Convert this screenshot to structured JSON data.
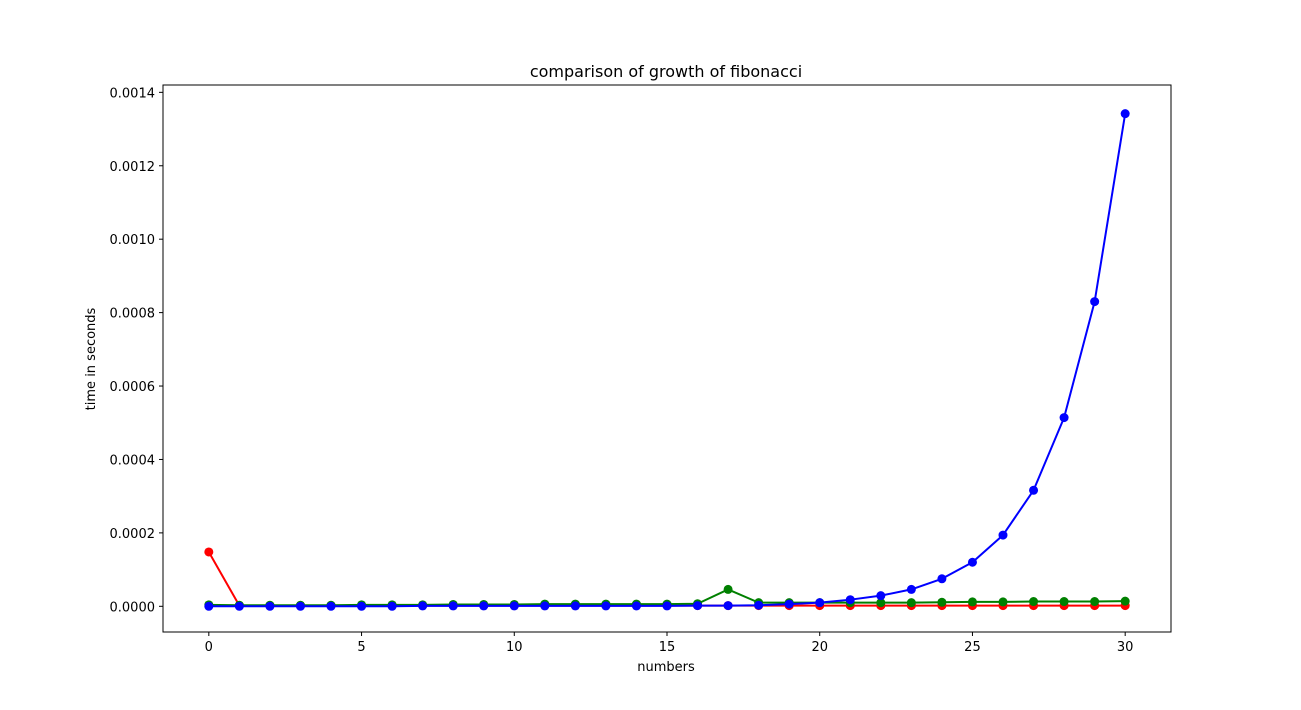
{
  "chart_data": {
    "type": "line",
    "title": "comparison of growth of fibonacci",
    "xlabel": "numbers",
    "ylabel": "time in seconds",
    "xlim": [
      -1.5,
      31.5
    ],
    "ylim": [
      -7e-05,
      0.00142
    ],
    "xticks": [
      0,
      5,
      10,
      15,
      20,
      25,
      30
    ],
    "xtick_labels": [
      "0",
      "5",
      "10",
      "15",
      "20",
      "25",
      "30"
    ],
    "yticks": [
      0.0,
      0.0002,
      0.0004,
      0.0006,
      0.0008,
      0.001,
      0.0012,
      0.0014
    ],
    "ytick_labels": [
      "0.0000",
      "0.0002",
      "0.0004",
      "0.0006",
      "0.0008",
      "0.0010",
      "0.0012",
      "0.0014"
    ],
    "grid": false,
    "x": [
      0,
      1,
      2,
      3,
      4,
      5,
      6,
      7,
      8,
      9,
      10,
      11,
      12,
      13,
      14,
      15,
      16,
      17,
      18,
      19,
      20,
      21,
      22,
      23,
      24,
      25,
      26,
      27,
      28,
      29,
      30
    ],
    "series": [
      {
        "color": "#ff0000",
        "values": [
          0.000148,
          2e-06,
          2e-06,
          2e-06,
          2e-06,
          2e-06,
          2e-06,
          2e-06,
          2e-06,
          2e-06,
          2e-06,
          2e-06,
          2e-06,
          2e-06,
          2e-06,
          2e-06,
          2e-06,
          2e-06,
          2e-06,
          2e-06,
          2e-06,
          2e-06,
          2e-06,
          2e-06,
          2e-06,
          2e-06,
          2e-06,
          2e-06,
          2e-06,
          2e-06,
          2e-06
        ]
      },
      {
        "color": "#008000",
        "values": [
          4e-06,
          3e-06,
          3e-06,
          3e-06,
          3e-06,
          4e-06,
          4e-06,
          4e-06,
          5e-06,
          5e-06,
          5e-06,
          6e-06,
          6e-06,
          6e-06,
          6e-06,
          6e-06,
          7e-06,
          4.6e-05,
          1e-05,
          1e-05,
          1e-05,
          1e-05,
          1e-05,
          1e-05,
          1.1e-05,
          1.2e-05,
          1.2e-05,
          1.3e-05,
          1.3e-05,
          1.3e-05,
          1.4e-05
        ]
      },
      {
        "color": "#0000ff",
        "values": [
          0.0,
          0.0,
          0.0,
          0.0,
          0.0,
          0.0,
          0.0,
          1e-06,
          1e-06,
          1e-06,
          1e-06,
          1e-06,
          1e-06,
          1e-06,
          1e-06,
          1e-06,
          2e-06,
          2e-06,
          3e-06,
          6e-06,
          1e-05,
          1.8e-05,
          2.9e-05,
          4.6e-05,
          7.5e-05,
          0.00012,
          0.000194,
          0.000316,
          0.000514,
          0.00083,
          0.001342
        ]
      }
    ]
  }
}
